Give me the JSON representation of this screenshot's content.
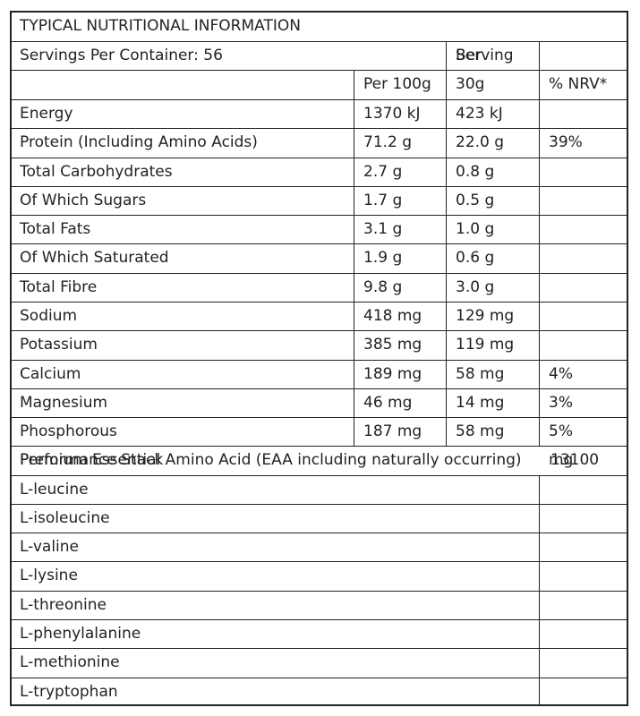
{
  "title": "TYPICAL NUTRITIONAL INFORMATION",
  "servings_label": "Servings Per Container: 56",
  "serving_header": "Serving",
  "serving_overlap": "Ber",
  "columns": {
    "per100g": "Per 100g",
    "serving": "30g",
    "nrv": "% NRV*"
  },
  "rows": [
    {
      "name": "Energy",
      "per100g": "1370 kJ",
      "serving": "423 kJ",
      "nrv": ""
    },
    {
      "name": "Protein (Including Amino Acids)",
      "per100g": "71.2 g",
      "serving": "22.0 g",
      "nrv": "39%"
    },
    {
      "name": "Total Carbohydrates",
      "per100g": "2.7 g",
      "serving": "0.8 g",
      "nrv": ""
    },
    {
      "name": "Of Which Sugars",
      "per100g": "1.7 g",
      "serving": "0.5 g",
      "nrv": ""
    },
    {
      "name": "Total Fats",
      "per100g": "3.1 g",
      "serving": "1.0 g",
      "nrv": ""
    },
    {
      "name": "Of Which Saturated",
      "per100g": "1.9 g",
      "serving": "0.6 g",
      "nrv": ""
    },
    {
      "name": "Total Fibre",
      "per100g": "9.8 g",
      "serving": "3.0 g",
      "nrv": ""
    },
    {
      "name": "Sodium",
      "per100g": "418 mg",
      "serving": "129 mg",
      "nrv": ""
    },
    {
      "name": "Potassium",
      "per100g": "385 mg",
      "serving": "119 mg",
      "nrv": ""
    },
    {
      "name": "Calcium",
      "per100g": "189 mg",
      "serving": "58 mg",
      "nrv": "4%"
    },
    {
      "name": "Magnesium",
      "per100g": "46 mg",
      "serving": "14 mg",
      "nrv": "3%"
    },
    {
      "name": "Phosphorous",
      "per100g": "187 mg",
      "serving": "58 mg",
      "nrv": "5%"
    }
  ],
  "eaa_row": {
    "label_a": "Performance Stack",
    "label_b": "Premium Essential Amino Acid (EAA including naturally occurring)",
    "value_a": "mg",
    "value_b": "13100"
  },
  "amino_acids": [
    {
      "name": "L-leucine",
      "value": ""
    },
    {
      "name": "L-isoleucine",
      "value": ""
    },
    {
      "name": "L-valine",
      "value": ""
    },
    {
      "name": "L-lysine",
      "value": ""
    },
    {
      "name": "L-threonine",
      "value": ""
    },
    {
      "name": "L-phenylalanine",
      "value": ""
    },
    {
      "name": "L-methionine",
      "value": ""
    },
    {
      "name": "L-tryptophan",
      "value": ""
    }
  ]
}
